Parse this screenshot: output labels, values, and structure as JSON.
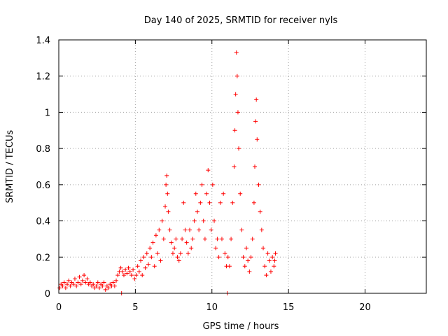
{
  "chart_data": {
    "type": "scatter",
    "title": "Day 140 of 2025, SRMTID for receiver nyls",
    "xlabel": "GPS time / hours",
    "ylabel": "SRMTID / TECUs",
    "xlim": [
      0,
      24
    ],
    "ylim": [
      0,
      1.4
    ],
    "xticks": [
      0,
      5,
      10,
      15,
      20
    ],
    "yticks": [
      0,
      0.2,
      0.4,
      0.6,
      0.8,
      1,
      1.2,
      1.4
    ],
    "xtick_labels": [
      "0",
      "5",
      "10",
      "15",
      "20"
    ],
    "ytick_labels": [
      "0",
      "0.2",
      "0.4",
      "0.6",
      "0.8",
      "1",
      "1.2",
      "1.4"
    ],
    "grid": true,
    "marker": "+",
    "color": "#ff0000",
    "series": [
      {
        "name": "SRMTID",
        "points": [
          [
            0.05,
            0.03
          ],
          [
            0.15,
            0.05
          ],
          [
            0.25,
            0.04
          ],
          [
            0.35,
            0.06
          ],
          [
            0.45,
            0.03
          ],
          [
            0.55,
            0.05
          ],
          [
            0.65,
            0.07
          ],
          [
            0.75,
            0.04
          ],
          [
            0.85,
            0.06
          ],
          [
            0.95,
            0.05
          ],
          [
            1.05,
            0.08
          ],
          [
            1.15,
            0.04
          ],
          [
            1.25,
            0.06
          ],
          [
            1.35,
            0.09
          ],
          [
            1.45,
            0.05
          ],
          [
            1.55,
            0.07
          ],
          [
            1.65,
            0.1
          ],
          [
            1.75,
            0.06
          ],
          [
            1.85,
            0.08
          ],
          [
            1.95,
            0.05
          ],
          [
            2.05,
            0.06
          ],
          [
            2.15,
            0.04
          ],
          [
            2.25,
            0.05
          ],
          [
            2.35,
            0.03
          ],
          [
            2.45,
            0.04
          ],
          [
            2.55,
            0.06
          ],
          [
            2.65,
            0.03
          ],
          [
            2.75,
            0.05
          ],
          [
            2.85,
            0.04
          ],
          [
            2.95,
            0.06
          ],
          [
            3.05,
            0.02
          ],
          [
            3.15,
            0.04
          ],
          [
            3.25,
            0.03
          ],
          [
            3.35,
            0.05
          ],
          [
            3.45,
            0.04
          ],
          [
            3.55,
            0.06
          ],
          [
            3.65,
            0.04
          ],
          [
            3.75,
            0.07
          ],
          [
            3.85,
            0.1
          ],
          [
            3.95,
            0.12
          ],
          [
            4.05,
            0.14
          ],
          [
            4.1,
            0.0
          ],
          [
            4.15,
            0.12
          ],
          [
            4.25,
            0.1
          ],
          [
            4.35,
            0.13
          ],
          [
            4.45,
            0.11
          ],
          [
            4.55,
            0.14
          ],
          [
            4.65,
            0.12
          ],
          [
            4.75,
            0.1
          ],
          [
            4.85,
            0.13
          ],
          [
            4.95,
            0.08
          ],
          [
            5.05,
            0.1
          ],
          [
            5.15,
            0.15
          ],
          [
            5.25,
            0.12
          ],
          [
            5.35,
            0.18
          ],
          [
            5.45,
            0.1
          ],
          [
            5.55,
            0.2
          ],
          [
            5.65,
            0.14
          ],
          [
            5.75,
            0.22
          ],
          [
            5.85,
            0.16
          ],
          [
            5.95,
            0.25
          ],
          [
            6.05,
            0.2
          ],
          [
            6.15,
            0.28
          ],
          [
            6.25,
            0.15
          ],
          [
            6.35,
            0.32
          ],
          [
            6.45,
            0.22
          ],
          [
            6.55,
            0.35
          ],
          [
            6.65,
            0.18
          ],
          [
            6.75,
            0.4
          ],
          [
            6.85,
            0.3
          ],
          [
            6.95,
            0.48
          ],
          [
            7.0,
            0.6
          ],
          [
            7.05,
            0.65
          ],
          [
            7.1,
            0.55
          ],
          [
            7.15,
            0.45
          ],
          [
            7.25,
            0.35
          ],
          [
            7.35,
            0.28
          ],
          [
            7.45,
            0.22
          ],
          [
            7.55,
            0.25
          ],
          [
            7.65,
            0.3
          ],
          [
            7.75,
            0.2
          ],
          [
            7.85,
            0.18
          ],
          [
            7.95,
            0.22
          ],
          [
            8.05,
            0.3
          ],
          [
            8.15,
            0.5
          ],
          [
            8.25,
            0.35
          ],
          [
            8.35,
            0.28
          ],
          [
            8.45,
            0.22
          ],
          [
            8.55,
            0.35
          ],
          [
            8.65,
            0.25
          ],
          [
            8.75,
            0.3
          ],
          [
            8.85,
            0.4
          ],
          [
            8.95,
            0.55
          ],
          [
            9.05,
            0.45
          ],
          [
            9.15,
            0.35
          ],
          [
            9.25,
            0.5
          ],
          [
            9.35,
            0.6
          ],
          [
            9.45,
            0.4
          ],
          [
            9.55,
            0.3
          ],
          [
            9.65,
            0.55
          ],
          [
            9.75,
            0.68
          ],
          [
            9.85,
            0.5
          ],
          [
            9.95,
            0.35
          ],
          [
            10.05,
            0.6
          ],
          [
            10.15,
            0.4
          ],
          [
            10.25,
            0.25
          ],
          [
            10.35,
            0.3
          ],
          [
            10.45,
            0.2
          ],
          [
            10.55,
            0.5
          ],
          [
            10.65,
            0.3
          ],
          [
            10.75,
            0.55
          ],
          [
            10.85,
            0.22
          ],
          [
            10.95,
            0.15
          ],
          [
            11.0,
            0.0
          ],
          [
            11.05,
            0.2
          ],
          [
            11.15,
            0.15
          ],
          [
            11.25,
            0.3
          ],
          [
            11.35,
            0.5
          ],
          [
            11.45,
            0.7
          ],
          [
            11.5,
            0.9
          ],
          [
            11.55,
            1.1
          ],
          [
            11.6,
            1.33
          ],
          [
            11.65,
            1.2
          ],
          [
            11.7,
            1.0
          ],
          [
            11.75,
            0.8
          ],
          [
            11.85,
            0.55
          ],
          [
            11.95,
            0.35
          ],
          [
            12.05,
            0.2
          ],
          [
            12.15,
            0.15
          ],
          [
            12.25,
            0.25
          ],
          [
            12.35,
            0.18
          ],
          [
            12.45,
            0.12
          ],
          [
            12.55,
            0.2
          ],
          [
            12.65,
            0.3
          ],
          [
            12.75,
            0.5
          ],
          [
            12.8,
            0.7
          ],
          [
            12.85,
            0.95
          ],
          [
            12.9,
            1.07
          ],
          [
            12.95,
            0.85
          ],
          [
            13.05,
            0.6
          ],
          [
            13.15,
            0.45
          ],
          [
            13.25,
            0.35
          ],
          [
            13.35,
            0.25
          ],
          [
            13.45,
            0.15
          ],
          [
            13.55,
            0.1
          ],
          [
            13.65,
            0.22
          ],
          [
            13.75,
            0.18
          ],
          [
            13.85,
            0.12
          ],
          [
            13.95,
            0.2
          ],
          [
            14.05,
            0.15
          ],
          [
            14.1,
            0.18
          ],
          [
            14.15,
            0.22
          ]
        ]
      }
    ]
  }
}
